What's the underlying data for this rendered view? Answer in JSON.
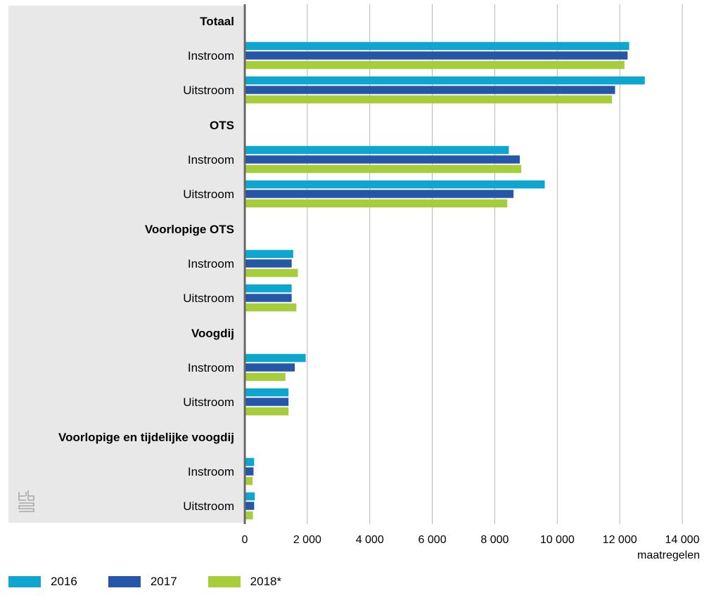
{
  "chart_data": {
    "type": "bar",
    "orientation": "horizontal",
    "xlabel": "maatregelen",
    "xlim": [
      0,
      14000
    ],
    "xticks": [
      0,
      2000,
      4000,
      6000,
      8000,
      10000,
      12000,
      14000
    ],
    "xtick_labels": [
      "0",
      "2 000",
      "4 000",
      "6 000",
      "8 000",
      "10 000",
      "12 000",
      "14 000"
    ],
    "grid": true,
    "legend_position": "bottom",
    "series_names": [
      "2016",
      "2017",
      "2018*"
    ],
    "colors": [
      "#0ea5cf",
      "#2656a8",
      "#a8cd3c"
    ],
    "groups": [
      {
        "label": "Totaal",
        "rows": [
          {
            "label": "Instroom",
            "values": [
              12300,
              12250,
              12150
            ]
          },
          {
            "label": "Uitstroom",
            "values": [
              12800,
              11850,
              11750
            ]
          }
        ]
      },
      {
        "label": "OTS",
        "rows": [
          {
            "label": "Instroom",
            "values": [
              8450,
              8800,
              8850
            ]
          },
          {
            "label": "Uitstroom",
            "values": [
              9600,
              8600,
              8400
            ]
          }
        ]
      },
      {
        "label": "Voorlopige OTS",
        "rows": [
          {
            "label": "Instroom",
            "values": [
              1550,
              1500,
              1700
            ]
          },
          {
            "label": "Uitstroom",
            "values": [
              1500,
              1500,
              1650
            ]
          }
        ]
      },
      {
        "label": "Voogdij",
        "rows": [
          {
            "label": "Instroom",
            "values": [
              1950,
              1600,
              1300
            ]
          },
          {
            "label": "Uitstroom",
            "values": [
              1400,
              1400,
              1400
            ]
          }
        ]
      },
      {
        "label": "Voorlopige en tijdelijke voogdij",
        "rows": [
          {
            "label": "Instroom",
            "values": [
              300,
              280,
              250
            ]
          },
          {
            "label": "Uitstroom",
            "values": [
              320,
              300,
              260
            ]
          }
        ]
      }
    ]
  },
  "logo": {
    "icon": "cbs-logo-icon"
  }
}
